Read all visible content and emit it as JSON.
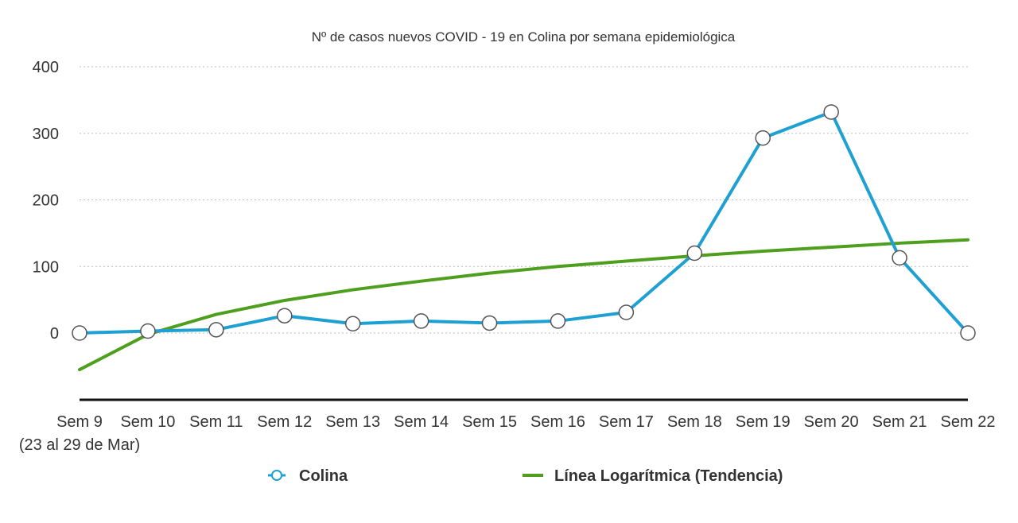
{
  "chart_data": {
    "type": "line",
    "title": "Nº de casos nuevos COVID - 19 en Colina por semana epidemiológica",
    "categories": [
      "Sem 9",
      "Sem 10",
      "Sem 11",
      "Sem 12",
      "Sem 13",
      "Sem 14",
      "Sem 15",
      "Sem 16",
      "Sem 17",
      "Sem 18",
      "Sem 19",
      "Sem 20",
      "Sem 21",
      "Sem 22"
    ],
    "category_sublabel": "(23 al 29 de Mar)",
    "yticks": [
      "400",
      "300",
      "200",
      "100",
      "0"
    ],
    "ylim": [
      -100,
      400
    ],
    "grid": true,
    "legend_position": "bottom",
    "series": [
      {
        "name": "Colina",
        "color": "#1ea0d2",
        "marker": "circle",
        "values": [
          0,
          3,
          5,
          26,
          14,
          18,
          15,
          18,
          31,
          120,
          293,
          332,
          113,
          0
        ]
      },
      {
        "name": "Línea Logarítmica (Tendencia)",
        "color": "#4f9f1f",
        "trend": "logarithmic",
        "values": [
          -55,
          -2,
          28,
          49,
          65,
          78,
          90,
          100,
          108,
          116,
          123,
          129,
          135,
          140
        ]
      }
    ]
  }
}
